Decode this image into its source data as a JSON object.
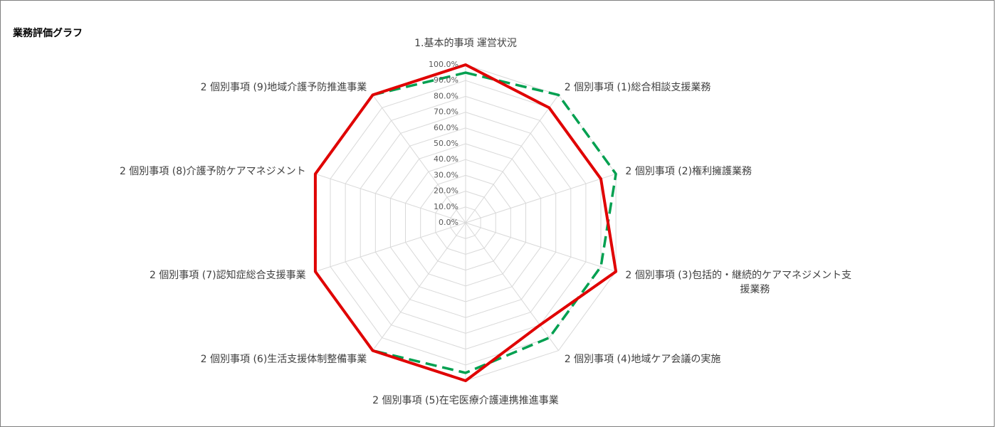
{
  "chart_data": {
    "type": "radar",
    "title": "業務評価グラフ",
    "categories": [
      "1.基本的事項 運営状況",
      "2  個別事項 (1)総合相談支援業務",
      "2  個別事項 (2)権利擁護業務",
      "2  個別事項 (3)包括的・継続的ケアマネジメント支援業務",
      "2  個別事項 (4)地域ケア会議の実施",
      "2  個別事項 (5)在宅医療介護連携推進事業",
      "2  個別事項 (6)生活支援体制整備事業",
      "2  個別事項 (7)認知症総合支援事業",
      "2  個別事項 (8)介護予防ケアマネジメント",
      "2  個別事項 (9)地域介護予防推進事業"
    ],
    "category_lines": [
      [
        "1.基本的事項 運営状況"
      ],
      [
        "2  個別事項 (1)総合相談支援業務"
      ],
      [
        "2  個別事項 (2)権利擁護業務"
      ],
      [
        "2  個別事項 (3)包括的・継続的ケアマネジメント支",
        "援業務"
      ],
      [
        "2  個別事項 (4)地域ケア会議の実施"
      ],
      [
        "2  個別事項 (5)在宅医療介護連携推進事業"
      ],
      [
        "2  個別事項 (6)生活支援体制整備事業"
      ],
      [
        "2  個別事項 (7)認知症総合支援事業"
      ],
      [
        "2  個別事項 (8)介護予防ケアマネジメント"
      ],
      [
        "2  個別事項 (9)地域介護予防推進事業"
      ]
    ],
    "tick_labels": [
      "0.0%",
      "10.0%",
      "20.0%",
      "30.0%",
      "40.0%",
      "50.0%",
      "60.0%",
      "70.0%",
      "80.0%",
      "90.0%",
      "100.0%"
    ],
    "rlim": [
      0,
      100
    ],
    "grid": true,
    "legend": "none",
    "series": [
      {
        "values": [
          100,
          90,
          90,
          100,
          80,
          100,
          100,
          100,
          100,
          100
        ],
        "color": "#e00000",
        "style": "solid"
      },
      {
        "values": [
          95,
          100,
          100,
          90,
          90,
          95,
          100,
          100,
          100,
          100
        ],
        "color": "#00a050",
        "style": "dashed"
      }
    ]
  }
}
